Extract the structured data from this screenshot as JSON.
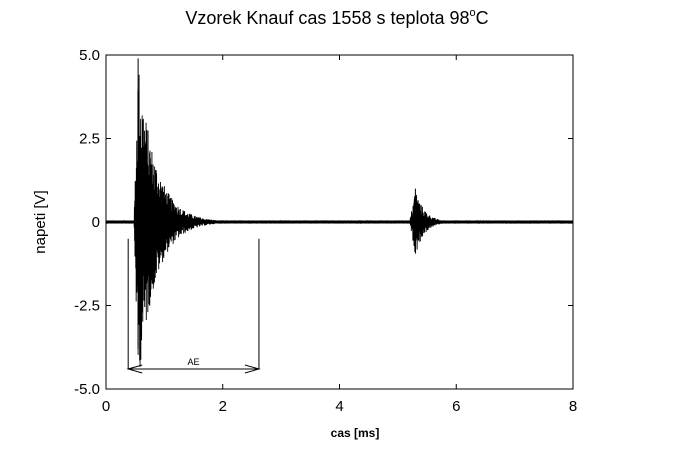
{
  "chart_data": {
    "type": "line",
    "title": "Vzorek Knauf cas 1558 s teplota 98",
    "title_superscript": "o",
    "title_unit": "C",
    "xlabel": "cas [ms]",
    "ylabel": "napeti [V]",
    "xlim": [
      0,
      8
    ],
    "ylim": [
      -5,
      5
    ],
    "x_ticks": [
      0,
      2,
      4,
      6,
      8
    ],
    "x_tick_labels": [
      "0",
      "2",
      "4",
      "6",
      "8"
    ],
    "y_ticks": [
      5,
      2.5,
      0,
      -2.5,
      -5
    ],
    "y_tick_labels": [
      "5.0",
      "2.5",
      "0",
      "-2.5",
      "-5.0"
    ],
    "grid": false,
    "line_color": "#000000",
    "series": [
      {
        "bursts": [
          {
            "start_ms": 0.48,
            "peak_ms": 0.55,
            "end_ms": 1.9,
            "peak_positive_v": 4.9,
            "peak_negative_v": -3.8
          },
          {
            "start_ms": 5.2,
            "peak_ms": 5.3,
            "end_ms": 6.0,
            "peak_positive_v": 1.0,
            "peak_negative_v": -0.9
          }
        ],
        "baseline_noise_v": 0.05
      }
    ],
    "annotations": [
      {
        "text": "AE",
        "type": "double-arrow",
        "x_start_ms": 0.38,
        "x_end_ms": 2.62,
        "y_v": -4.4,
        "vertical_markers": [
          {
            "x_ms": 0.38,
            "y_from_v": -4.4,
            "y_to_v": -0.5
          },
          {
            "x_ms": 2.62,
            "y_from_v": -4.4,
            "y_to_v": -0.5
          }
        ]
      }
    ]
  }
}
